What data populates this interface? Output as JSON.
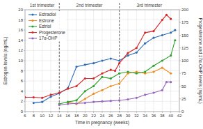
{
  "chart_data": {
    "type": "line",
    "x_label": "Time in pregnancy (weeks)",
    "y_label": "Estrogen levels (ng/mL)",
    "y2_label": "Progesterone and 17α-OHP levels (ng/mL)",
    "xlim": [
      6,
      42
    ],
    "xticks": [
      6,
      8,
      10,
      12,
      14,
      16,
      18,
      20,
      22,
      24,
      26,
      28,
      30,
      32,
      34,
      36,
      38,
      40,
      42
    ],
    "ylim": [
      0,
      20
    ],
    "yticks": [
      0,
      2,
      4,
      6,
      8,
      10,
      12,
      14,
      16,
      18,
      20
    ],
    "y2lim": [
      0,
      200
    ],
    "y2ticks": [
      0,
      25,
      50,
      75,
      100,
      125,
      150,
      175,
      200
    ],
    "grid": true,
    "legend": "upper left",
    "marker": "circle",
    "annotations": [
      {
        "text": "1st trimester",
        "x": [
          6,
          14
        ]
      },
      {
        "text": "2nd trimester",
        "x": [
          14,
          28
        ]
      },
      {
        "text": "3rd trimester",
        "x": [
          28,
          42
        ]
      }
    ],
    "series": [
      {
        "name": "Estradiol",
        "color": "#2f6db5",
        "x": [
          8,
          10,
          12,
          14,
          16,
          18,
          20,
          22,
          24,
          26,
          28,
          30,
          32,
          34,
          36,
          38,
          40,
          41
        ],
        "values": [
          1.7,
          1.9,
          2.9,
          3.6,
          4.6,
          8.8,
          9.2,
          9.5,
          10.0,
          10.4,
          10.0,
          11.0,
          11.6,
          13.4,
          14.5,
          15.0,
          15.5,
          16.0
        ]
      },
      {
        "name": "Estrone",
        "color": "#f08c1f",
        "x": [
          16,
          18,
          20,
          22,
          24,
          26,
          28,
          30,
          32,
          34,
          36,
          38,
          40
        ],
        "values": [
          1.8,
          1.5,
          2.5,
          3.5,
          4.2,
          5.0,
          5.5,
          7.5,
          7.8,
          7.5,
          7.8,
          8.6,
          7.5
        ]
      },
      {
        "name": "Estriol",
        "color": "#2ca02c",
        "x": [
          14,
          16,
          18,
          20,
          22,
          24,
          26,
          28,
          30,
          32,
          34,
          36,
          38,
          40,
          41
        ],
        "values": [
          1.5,
          1.9,
          2.2,
          4.0,
          5.0,
          6.8,
          6.5,
          7.5,
          7.8,
          7.5,
          7.8,
          9.0,
          10.0,
          11.0,
          14.0
        ]
      },
      {
        "name": "Progesterone",
        "color": "#d62728",
        "axis": "y2",
        "x": [
          6,
          8,
          10,
          12,
          14,
          16,
          18,
          20,
          22,
          24,
          26,
          27,
          28,
          30,
          32,
          34,
          36,
          38,
          39,
          40
        ],
        "values": [
          28,
          28,
          27,
          33,
          37,
          45,
          50,
          65,
          65,
          75,
          82,
          80,
          95,
          115,
          125,
          155,
          158,
          180,
          190,
          182
        ]
      },
      {
        "name": "17α-OHP",
        "color": "#9467bd",
        "axis": "y2",
        "x": [
          14,
          16,
          18,
          20,
          22,
          24,
          26,
          28,
          30,
          32,
          34,
          36,
          38,
          39,
          40
        ],
        "values": [
          13,
          15,
          16,
          17,
          19,
          20,
          21,
          22,
          24,
          27,
          33,
          37,
          42,
          58,
          58
        ]
      }
    ]
  }
}
